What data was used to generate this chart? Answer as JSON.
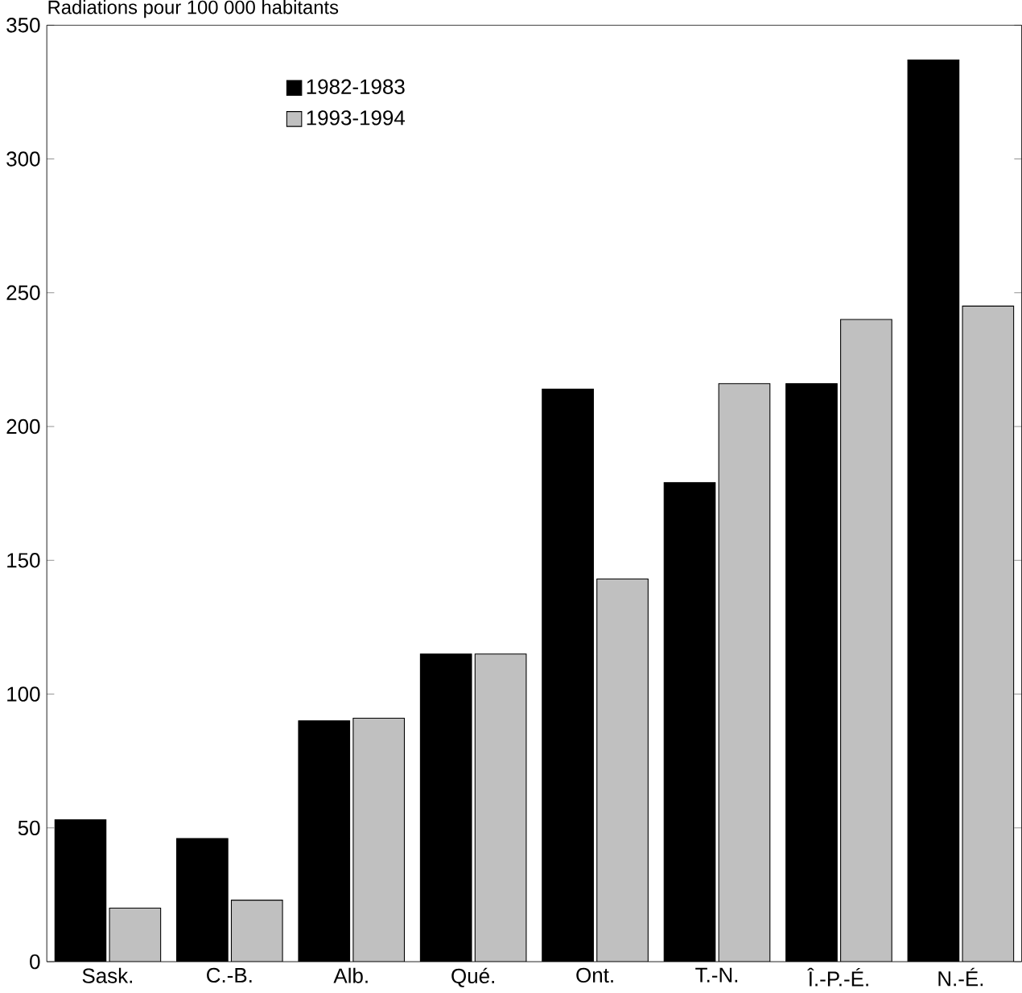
{
  "chart_data": {
    "type": "bar",
    "ylabel": "Radiations pour 100 000 habitants",
    "categories": [
      "Sask.",
      "C.-B.",
      "Alb.",
      "Qué.",
      "Ont.",
      "T.-N.",
      "Î.-P.-É.",
      "N.-É."
    ],
    "series": [
      {
        "name": "1982-1983",
        "color": "#000000",
        "values": [
          53,
          46,
          90,
          115,
          214,
          179,
          216,
          337
        ]
      },
      {
        "name": "1993-1994",
        "color": "#c0c0c0",
        "values": [
          20,
          23,
          91,
          115,
          143,
          216,
          240,
          245
        ]
      }
    ],
    "ylim": [
      0,
      350
    ],
    "yticks": [
      0,
      50,
      100,
      150,
      200,
      250,
      300,
      350
    ],
    "grid": false,
    "legend": "top left"
  }
}
